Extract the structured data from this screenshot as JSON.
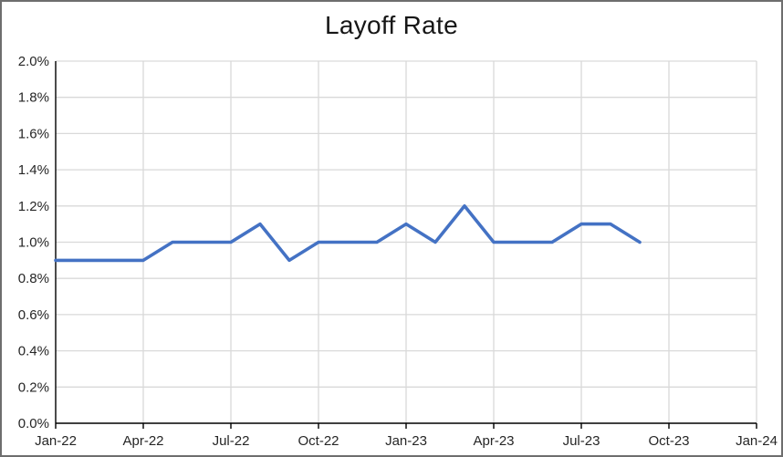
{
  "chart_data": {
    "type": "line",
    "title": "Layoff Rate",
    "xlabel": "",
    "ylabel": "",
    "x": [
      "Jan-22",
      "Feb-22",
      "Mar-22",
      "Apr-22",
      "May-22",
      "Jun-22",
      "Jul-22",
      "Aug-22",
      "Sep-22",
      "Oct-22",
      "Nov-22",
      "Dec-22",
      "Jan-23",
      "Feb-23",
      "Mar-23",
      "Apr-23",
      "May-23",
      "Jun-23",
      "Jul-23",
      "Aug-23",
      "Sep-23"
    ],
    "series": [
      {
        "name": "Layoff Rate",
        "values_pct": [
          0.9,
          0.9,
          0.9,
          0.9,
          1.0,
          1.0,
          1.0,
          1.1,
          0.9,
          1.0,
          1.0,
          1.0,
          1.1,
          1.0,
          1.2,
          1.0,
          1.0,
          1.0,
          1.1,
          1.1,
          1.0
        ]
      }
    ],
    "x_axis": {
      "tick_labels": [
        "Jan-22",
        "Apr-22",
        "Jul-22",
        "Oct-22",
        "Jan-23",
        "Apr-23",
        "Jul-23",
        "Oct-23",
        "Jan-24"
      ],
      "months_per_tick": 3,
      "total_months": 24
    },
    "y_axis": {
      "tick_labels": [
        "0.0%",
        "0.2%",
        "0.4%",
        "0.6%",
        "0.8%",
        "1.0%",
        "1.2%",
        "1.4%",
        "1.6%",
        "1.8%",
        "2.0%"
      ],
      "ylim_pct": [
        0.0,
        2.0
      ]
    },
    "grid": true,
    "legend": "none",
    "colors": {
      "line": "#4472C4",
      "gridline": "#D9D9D9",
      "axis": "#000000",
      "tick_text": "#262626",
      "title_text": "#161616",
      "background": "#FFFFFF",
      "frame_border": "#6E6E6E"
    }
  }
}
